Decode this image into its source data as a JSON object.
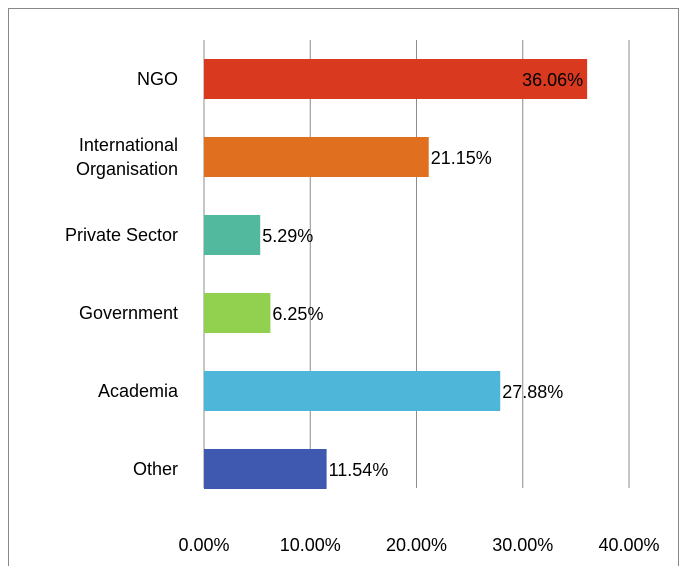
{
  "chart_data": {
    "type": "bar",
    "orientation": "horizontal",
    "categories": [
      "NGO",
      "International Organisation",
      "Private Sector",
      "Government",
      "Academia",
      "Other"
    ],
    "values": [
      36.06,
      21.15,
      5.29,
      6.25,
      27.88,
      11.54
    ],
    "value_labels": [
      "36.06%",
      "21.15%",
      "5.29%",
      "6.25%",
      "27.88%",
      "11.54%"
    ],
    "colors": [
      "#d9391e",
      "#e07020",
      "#52b99f",
      "#92d050",
      "#4db6d9",
      "#3f59b0"
    ],
    "xlim": [
      0,
      40
    ],
    "xticks": [
      {
        "value": 0,
        "label": "0.00%"
      },
      {
        "value": 10,
        "label": "10.00%"
      },
      {
        "value": 20,
        "label": "20.00%"
      },
      {
        "value": 30,
        "label": "30.00%"
      },
      {
        "value": 40,
        "label": "40.00%"
      }
    ],
    "grid": true
  }
}
